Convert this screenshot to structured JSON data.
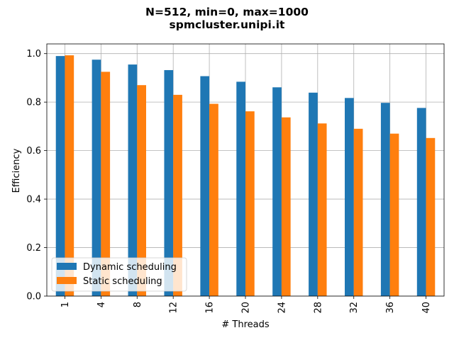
{
  "chart_data": {
    "type": "bar",
    "title": "N=512, min=0, max=1000",
    "subtitle": "spmcluster.unipi.it",
    "xlabel": "# Threads",
    "ylabel": "Efficiency",
    "categories": [
      "1",
      "4",
      "8",
      "12",
      "16",
      "20",
      "24",
      "28",
      "32",
      "36",
      "40"
    ],
    "series": [
      {
        "name": "Dynamic scheduling",
        "color": "#1f77b4",
        "values": [
          0.99,
          0.975,
          0.955,
          0.932,
          0.907,
          0.884,
          0.861,
          0.839,
          0.817,
          0.797,
          0.776
        ]
      },
      {
        "name": "Static scheduling",
        "color": "#ff7f0e",
        "values": [
          0.993,
          0.925,
          0.87,
          0.83,
          0.793,
          0.762,
          0.737,
          0.712,
          0.69,
          0.67,
          0.652
        ]
      }
    ],
    "ylim": [
      0,
      1.04
    ],
    "yticks": [
      "0.0",
      "0.2",
      "0.4",
      "0.6",
      "0.8",
      "1.0"
    ],
    "grid": true,
    "legend_position": "lower-left"
  }
}
